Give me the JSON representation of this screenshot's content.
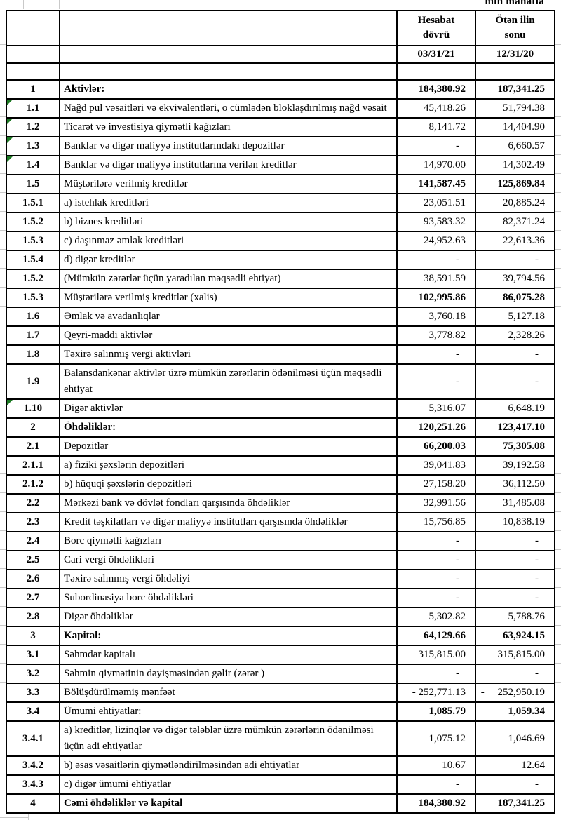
{
  "sheet": {
    "unit_label": "min manatla"
  },
  "colors": {
    "border": "#000000",
    "gridline": "#c9c9c9",
    "marker_green": "#1d7a24"
  },
  "header": {
    "period": {
      "line1": "Hesabat",
      "line2": "dövrü",
      "date": "03/31/21"
    },
    "prior": {
      "line1": "Ötən ilin",
      "line2": "sonu",
      "date": "12/31/20"
    }
  },
  "rows": [
    {
      "no": "1",
      "label": "Aktivlər:",
      "v1": "184,380.92",
      "v2": "187,341.25",
      "label_bold": true,
      "value_bold": true,
      "marker": false
    },
    {
      "no": "1.1",
      "label": "Nağd pul vəsaitləri və  ekvivalentləri, o cümlədən bloklaşdırılmış nağd vəsait",
      "v1": "45,418.26",
      "v2": "51,794.38",
      "label_bold": false,
      "value_bold": false,
      "marker": true
    },
    {
      "no": "1.2",
      "label": "Ticarət və investisiya qiymətli kağızları",
      "v1": "8,141.72",
      "v2": "14,404.90",
      "label_bold": false,
      "value_bold": false,
      "marker": true
    },
    {
      "no": "1.3",
      "label": "Banklar və digər maliyyə institutlarındakı depozitlər",
      "v1": "-",
      "v2": "6,660.57",
      "label_bold": false,
      "value_bold": false,
      "marker": true
    },
    {
      "no": "1.4",
      "label": "Banklar və digər maliyyə institutlarına verilən kreditlər",
      "v1": "14,970.00",
      "v2": "14,302.49",
      "label_bold": false,
      "value_bold": false,
      "marker": true
    },
    {
      "no": "1.5",
      "label": "Müştərilərə verilmiş kreditlər",
      "v1": "141,587.45",
      "v2": "125,869.84",
      "label_bold": false,
      "value_bold": true,
      "marker": false
    },
    {
      "no": "1.5.1",
      "label": "a) istehlak kreditləri",
      "v1": "23,051.51",
      "v2": "20,885.24",
      "label_bold": false,
      "value_bold": false,
      "marker": false
    },
    {
      "no": "1.5.2",
      "label": "b) biznes kreditləri",
      "v1": "93,583.32",
      "v2": "82,371.24",
      "label_bold": false,
      "value_bold": false,
      "marker": false
    },
    {
      "no": "1.5.3",
      "label": "c) daşınmaz əmlak kreditləri",
      "v1": "24,952.63",
      "v2": "22,613.36",
      "label_bold": false,
      "value_bold": false,
      "marker": false
    },
    {
      "no": "1.5.4",
      "label": "d) digər kreditlər",
      "v1": "-",
      "v2": "-",
      "label_bold": false,
      "value_bold": false,
      "marker": false
    },
    {
      "no": "1.5.2",
      "label": "(Mümkün zərərlər üçün yaradılan məqsədli ehtiyat)",
      "v1": "38,591.59",
      "v2": "39,794.56",
      "label_bold": false,
      "value_bold": false,
      "marker": false
    },
    {
      "no": "1.5.3",
      "label": "Müştərilərə verilmiş kreditlər (xalis)",
      "v1": "102,995.86",
      "v2": "86,075.28",
      "label_bold": false,
      "value_bold": true,
      "marker": false
    },
    {
      "no": "1.6",
      "label": "Əmlak və avadanlıqlar",
      "v1": "3,760.18",
      "v2": "5,127.18",
      "label_bold": false,
      "value_bold": false,
      "marker": false
    },
    {
      "no": "1.7",
      "label": "Qeyri-maddi aktivlər",
      "v1": "3,778.82",
      "v2": "2,328.26",
      "label_bold": false,
      "value_bold": false,
      "marker": false
    },
    {
      "no": "1.8",
      "label": "Təxirə salınmış vergi aktivləri",
      "v1": "-",
      "v2": "-",
      "label_bold": false,
      "value_bold": false,
      "marker": false
    },
    {
      "no": "1.9",
      "label": "Balansdankənar aktivlər üzrə mümkün zərərlərin ödənilməsi üçün məqsədli ehtiyat",
      "v1": "-",
      "v2": "-",
      "label_bold": false,
      "value_bold": false,
      "marker": false
    },
    {
      "no": "1.10",
      "label": "Digər aktivlər",
      "v1": "5,316.07",
      "v2": "6,648.19",
      "label_bold": false,
      "value_bold": false,
      "marker": true
    },
    {
      "no": "2",
      "label": "Öhdəliklər:",
      "v1": "120,251.26",
      "v2": "123,417.10",
      "label_bold": true,
      "value_bold": true,
      "marker": false
    },
    {
      "no": "2.1",
      "label": "Depozitlər",
      "v1": "66,200.03",
      "v2": "75,305.08",
      "label_bold": false,
      "value_bold": true,
      "marker": false
    },
    {
      "no": "2.1.1",
      "label": "a) fiziki şəxslərin depozitləri",
      "v1": "39,041.83",
      "v2": "39,192.58",
      "label_bold": false,
      "value_bold": false,
      "marker": false
    },
    {
      "no": "2.1.2",
      "label": "b) hüquqi şəxslərin depozitləri",
      "v1": "27,158.20",
      "v2": "36,112.50",
      "label_bold": false,
      "value_bold": false,
      "marker": false
    },
    {
      "no": "2.2",
      "label": "Mərkəzi bank və dövlət fondları qarşısında öhdəliklər",
      "v1": "32,991.56",
      "v2": "31,485.08",
      "label_bold": false,
      "value_bold": false,
      "marker": false
    },
    {
      "no": "2.3",
      "label": "Kredit təşkilatları və digər maliyyə institutları qarşısında öhdəliklər",
      "v1": "15,756.85",
      "v2": "10,838.19",
      "label_bold": false,
      "value_bold": false,
      "marker": false
    },
    {
      "no": "2.4",
      "label": "Borc qiymətli kağızları",
      "v1": "-",
      "v2": "-",
      "label_bold": false,
      "value_bold": false,
      "marker": false
    },
    {
      "no": "2.5",
      "label": "Cari vergi öhdəlikləri",
      "v1": "-",
      "v2": "-",
      "label_bold": false,
      "value_bold": false,
      "marker": false
    },
    {
      "no": "2.6",
      "label": "Təxirə salınmış vergi öhdəliyi",
      "v1": "-",
      "v2": "-",
      "label_bold": false,
      "value_bold": false,
      "marker": false
    },
    {
      "no": "2.7",
      "label": "Subordinasiya borc öhdəlikləri",
      "v1": "-",
      "v2": "-",
      "label_bold": false,
      "value_bold": false,
      "marker": false
    },
    {
      "no": "2.8",
      "label": "Digər öhdəliklər",
      "v1": "5,302.82",
      "v2": "5,788.76",
      "label_bold": false,
      "value_bold": false,
      "marker": false
    },
    {
      "no": "3",
      "label": "Kapital:",
      "v1": "64,129.66",
      "v2": "63,924.15",
      "label_bold": true,
      "value_bold": true,
      "marker": false
    },
    {
      "no": "3.1",
      "label": "Səhmdar kapitalı",
      "v1": "315,815.00",
      "v2": "315,815.00",
      "label_bold": false,
      "value_bold": false,
      "marker": false
    },
    {
      "no": "3.2",
      "label": "Səhmin qiymətinin dəyişməsindən gəlir (zərər )",
      "v1": "-",
      "v2": "-",
      "label_bold": false,
      "value_bold": false,
      "marker": false
    },
    {
      "no": "3.3",
      "label": "Bölüşdürülməmiş mənfəət",
      "v1": "- 252,771.13",
      "v2": "-     252,950.19",
      "label_bold": false,
      "value_bold": false,
      "marker": false
    },
    {
      "no": "3.4",
      "label": "Ümumi ehtiyatlar:",
      "v1": "1,085.79",
      "v2": "1,059.34",
      "label_bold": false,
      "value_bold": true,
      "marker": false
    },
    {
      "no": "3.4.1",
      "label": "a) kreditlər, lizinqlər və digər tələblər üzrə mümkün zərərlərin ödənilməsi üçün adi ehtiyatlar",
      "v1": "1,075.12",
      "v2": "1,046.69",
      "label_bold": false,
      "value_bold": false,
      "marker": false
    },
    {
      "no": "3.4.2",
      "label": "b) əsas vəsaitlərin qiymətləndirilməsindən adi ehtiyatlar",
      "v1": "10.67",
      "v2": "12.64",
      "label_bold": false,
      "value_bold": false,
      "marker": false
    },
    {
      "no": "3.4.3",
      "label": "c) digər ümumi ehtiyatlar",
      "v1": "-",
      "v2": "-",
      "label_bold": false,
      "value_bold": false,
      "marker": false
    },
    {
      "no": "4",
      "label": "Cəmi öhdəliklər və kapital",
      "v1": "184,380.92",
      "v2": "187,341.25",
      "label_bold": true,
      "value_bold": true,
      "marker": false
    }
  ]
}
